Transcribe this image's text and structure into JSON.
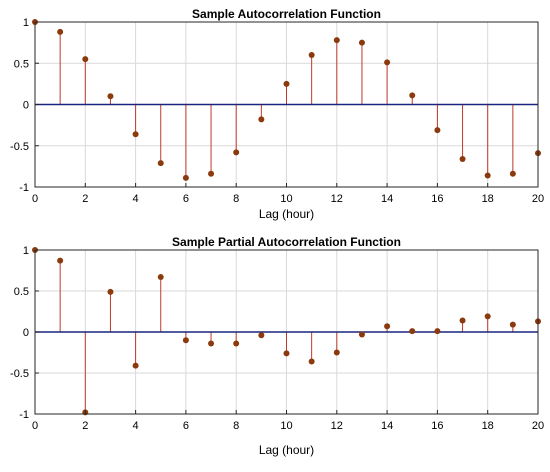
{
  "chart_data": [
    {
      "type": "stem",
      "title": "Sample Autocorrelation Function",
      "xlabel": "Lag (hour)",
      "ylabel": "",
      "xlim": [
        0,
        20
      ],
      "ylim": [
        -1,
        1
      ],
      "xticks": [
        0,
        2,
        4,
        6,
        8,
        10,
        12,
        14,
        16,
        18,
        20
      ],
      "yticks": [
        -1,
        -0.5,
        0,
        0.5,
        1
      ],
      "grid": true,
      "x": [
        0,
        1,
        2,
        3,
        4,
        5,
        6,
        7,
        8,
        9,
        10,
        11,
        12,
        13,
        14,
        15,
        16,
        17,
        18,
        19,
        20
      ],
      "values": [
        1.0,
        0.88,
        0.55,
        0.1,
        -0.36,
        -0.71,
        -0.89,
        -0.84,
        -0.58,
        -0.18,
        0.25,
        0.6,
        0.78,
        0.75,
        0.51,
        0.11,
        -0.31,
        -0.66,
        -0.86,
        -0.84,
        -0.59
      ],
      "colors": {
        "stem": "#c0392b",
        "marker": "#8b3a0e",
        "zero_line": "#1a237e"
      }
    },
    {
      "type": "stem",
      "title": "Sample Partial Autocorrelation Function",
      "xlabel": "Lag (hour)",
      "ylabel": "",
      "xlim": [
        0,
        20
      ],
      "ylim": [
        -1,
        1
      ],
      "xticks": [
        0,
        2,
        4,
        6,
        8,
        10,
        12,
        14,
        16,
        18,
        20
      ],
      "yticks": [
        -1,
        -0.5,
        0,
        0.5,
        1
      ],
      "grid": true,
      "x": [
        0,
        1,
        2,
        3,
        4,
        5,
        6,
        7,
        8,
        9,
        10,
        11,
        12,
        13,
        14,
        15,
        16,
        17,
        18,
        19,
        20
      ],
      "values": [
        1.0,
        0.87,
        -0.98,
        0.49,
        -0.41,
        0.67,
        -0.1,
        -0.14,
        -0.14,
        -0.04,
        -0.26,
        -0.36,
        -0.25,
        -0.03,
        0.07,
        0.01,
        0.01,
        0.14,
        0.19,
        0.09,
        0.13
      ],
      "colors": {
        "stem": "#c0392b",
        "marker": "#8b3a0e",
        "zero_line": "#1a237e"
      }
    }
  ]
}
